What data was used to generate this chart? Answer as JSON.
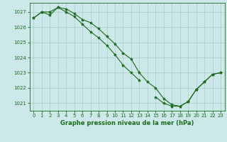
{
  "xlabel": "Graphe pression niveau de la mer (hPa)",
  "background_color": "#cce8e8",
  "grid_color": "#aacccc",
  "line_color": "#1a6b1a",
  "marker": "*",
  "x": [
    0,
    1,
    2,
    3,
    4,
    5,
    6,
    7,
    8,
    9,
    10,
    11,
    12,
    13,
    14,
    15,
    16,
    17,
    18,
    19,
    20,
    21,
    22,
    23
  ],
  "line1": [
    1026.6,
    1027.0,
    1026.8,
    1027.3,
    1027.2,
    1026.9,
    1026.5,
    1026.3,
    1025.9,
    1025.4,
    1024.9,
    1024.3,
    1023.9,
    1023.0,
    1022.4,
    1022.0,
    1021.3,
    1020.9,
    1020.8,
    1021.1,
    1021.9,
    1022.4,
    1022.9,
    1023.0
  ],
  "line2": [
    1026.6,
    1027.0,
    1027.0,
    1027.3,
    1027.0,
    1026.7,
    1026.2,
    1025.7,
    1025.3,
    1024.8,
    1024.2,
    1023.5,
    1023.0,
    1022.5
  ],
  "line2_x": [
    0,
    1,
    2,
    3,
    4,
    5,
    6,
    7,
    8,
    9,
    10,
    11,
    12,
    13
  ],
  "line3_x": [
    15,
    16,
    17,
    18,
    19,
    20,
    21,
    22,
    23
  ],
  "line3": [
    1021.4,
    1021.0,
    1020.8,
    1020.8,
    1021.1,
    1021.9,
    1022.4,
    1022.9,
    1023.0
  ],
  "ylim": [
    1020.5,
    1027.6
  ],
  "yticks": [
    1021,
    1022,
    1023,
    1024,
    1025,
    1026,
    1027
  ],
  "xticks": [
    0,
    1,
    2,
    3,
    4,
    5,
    6,
    7,
    8,
    9,
    10,
    11,
    12,
    13,
    14,
    15,
    16,
    17,
    18,
    19,
    20,
    21,
    22,
    23
  ],
  "xlabel_fontsize": 6,
  "tick_fontsize": 5,
  "linewidth": 0.8,
  "markersize": 3
}
